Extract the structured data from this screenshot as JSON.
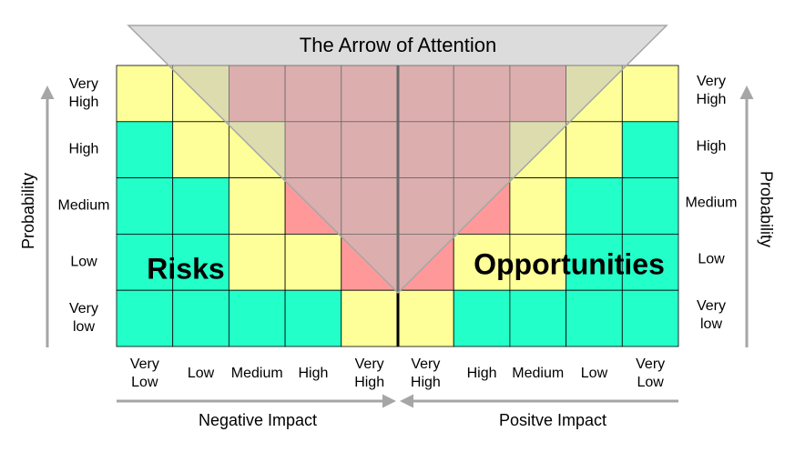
{
  "title": "The Arrow of Attention",
  "left_axis": {
    "title": "Probability",
    "levels": [
      [
        "Very",
        "High"
      ],
      [
        "High"
      ],
      [
        "Medium"
      ],
      [
        "Low"
      ],
      [
        "Very",
        "low"
      ]
    ]
  },
  "right_axis": {
    "title": "Probability",
    "levels": [
      [
        "Very",
        "High"
      ],
      [
        "High"
      ],
      [
        "Medium"
      ],
      [
        "Low"
      ],
      [
        "Very",
        "low"
      ]
    ]
  },
  "negative_impact": {
    "title": "Negative Impact",
    "levels": [
      [
        "Very",
        "Low"
      ],
      [
        "Low"
      ],
      [
        "Medium"
      ],
      [
        "High"
      ],
      [
        "Very",
        "High"
      ]
    ]
  },
  "positive_impact": {
    "title": "Positve Impact",
    "levels": [
      [
        "Very",
        "High"
      ],
      [
        "High"
      ],
      [
        "Medium"
      ],
      [
        "Low"
      ],
      [
        "Very",
        "Low"
      ]
    ]
  },
  "regions": {
    "risks": "Risks",
    "opportunities": "Opportunities"
  }
}
